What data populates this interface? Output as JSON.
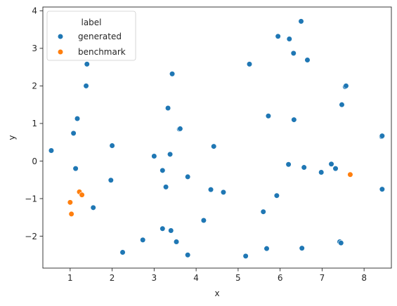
{
  "chart_data": {
    "type": "scatter",
    "xlabel": "x",
    "ylabel": "y",
    "xlim": [
      0.35,
      8.65
    ],
    "ylim": [
      -2.85,
      4.1
    ],
    "xticks": [
      1,
      2,
      3,
      4,
      5,
      6,
      7,
      8
    ],
    "yticks": [
      -2,
      -1,
      0,
      1,
      2,
      3,
      4
    ],
    "tick_labels": {
      "x": [
        "1",
        "2",
        "3",
        "4",
        "5",
        "6",
        "7",
        "8"
      ],
      "y": [
        "−2",
        "−1",
        "0",
        "1",
        "2",
        "3",
        "4"
      ]
    },
    "grid": false,
    "legend": {
      "title": "label",
      "placement": "top-left",
      "entries": [
        "generated",
        "benchmark"
      ]
    },
    "colors": {
      "generated": "#1f77b4",
      "benchmark": "#ff7f0e"
    },
    "series": [
      {
        "name": "generated",
        "color": "#1f77b4",
        "points": [
          [
            0.55,
            0.28
          ],
          [
            1.08,
            0.74
          ],
          [
            1.13,
            -0.2
          ],
          [
            1.17,
            1.13
          ],
          [
            1.38,
            2.0
          ],
          [
            1.4,
            2.58
          ],
          [
            1.55,
            -1.24
          ],
          [
            1.97,
            -0.51
          ],
          [
            2.0,
            0.41
          ],
          [
            2.25,
            -2.43
          ],
          [
            2.73,
            -2.1
          ],
          [
            3.0,
            0.13
          ],
          [
            3.2,
            -0.25
          ],
          [
            3.2,
            -1.8
          ],
          [
            3.28,
            -0.69
          ],
          [
            3.33,
            1.41
          ],
          [
            3.38,
            0.18
          ],
          [
            3.4,
            -1.85
          ],
          [
            3.43,
            2.32
          ],
          [
            3.53,
            -2.15
          ],
          [
            3.6,
            0.85
          ],
          [
            3.62,
            0.86
          ],
          [
            3.8,
            -2.5
          ],
          [
            3.8,
            -0.42
          ],
          [
            4.18,
            -1.58
          ],
          [
            4.35,
            -0.76
          ],
          [
            4.42,
            0.39
          ],
          [
            4.65,
            -0.83
          ],
          [
            5.18,
            -2.53
          ],
          [
            5.27,
            2.58
          ],
          [
            5.6,
            -1.35
          ],
          [
            5.68,
            -2.33
          ],
          [
            5.72,
            1.2
          ],
          [
            5.92,
            -0.92
          ],
          [
            5.95,
            3.32
          ],
          [
            6.2,
            -0.09
          ],
          [
            6.22,
            3.25
          ],
          [
            6.32,
            2.87
          ],
          [
            6.33,
            1.1
          ],
          [
            6.5,
            3.72
          ],
          [
            6.52,
            -2.32
          ],
          [
            6.57,
            -0.17
          ],
          [
            6.65,
            2.69
          ],
          [
            6.98,
            -0.3
          ],
          [
            7.22,
            -0.08
          ],
          [
            7.32,
            -0.2
          ],
          [
            7.42,
            -2.15
          ],
          [
            7.45,
            -2.18
          ],
          [
            7.47,
            1.5
          ],
          [
            7.55,
            1.98
          ],
          [
            7.57,
            2.0
          ],
          [
            8.42,
            0.65
          ],
          [
            8.43,
            0.67
          ],
          [
            8.43,
            -0.75
          ]
        ]
      },
      {
        "name": "benchmark",
        "color": "#ff7f0e",
        "points": [
          [
            1.0,
            -1.1
          ],
          [
            1.03,
            -1.41
          ],
          [
            1.22,
            -0.82
          ],
          [
            1.28,
            -0.9
          ],
          [
            7.67,
            -0.36
          ]
        ]
      }
    ]
  }
}
